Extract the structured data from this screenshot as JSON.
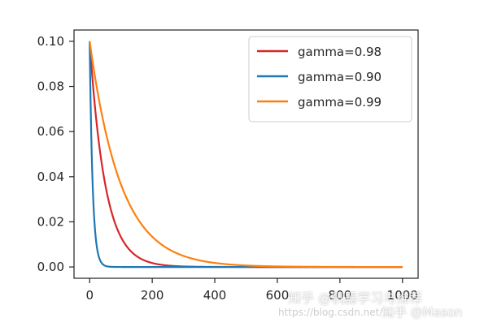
{
  "chart_data": {
    "type": "line",
    "title": "",
    "xlabel": "",
    "ylabel": "",
    "xlim": [
      -50,
      1050
    ],
    "ylim": [
      -0.005,
      0.105
    ],
    "x_ticks": [
      0,
      200,
      400,
      600,
      800,
      1000
    ],
    "x_tick_labels": [
      "0",
      "200",
      "400",
      "600",
      "800",
      "1000"
    ],
    "y_ticks": [
      0.0,
      0.02,
      0.04,
      0.06,
      0.08,
      0.1
    ],
    "y_tick_labels": [
      "0.00",
      "0.02",
      "0.04",
      "0.06",
      "0.08",
      "0.10"
    ],
    "grid": false,
    "legend_position": "top-right",
    "series": [
      {
        "name": "gamma=0.98",
        "color": "#d62728",
        "initial": 0.1,
        "gamma": 0.98,
        "x_range": [
          0,
          1000
        ]
      },
      {
        "name": "gamma=0.90",
        "color": "#1f77b4",
        "initial": 0.1,
        "gamma": 0.9,
        "x_range": [
          0,
          1000
        ]
      },
      {
        "name": "gamma=0.99",
        "color": "#ff7f0e",
        "initial": 0.1,
        "gamma": 0.99,
        "x_range": [
          0,
          1000
        ]
      }
    ]
  },
  "watermark": {
    "line1": "知乎 @机器学习与推荐",
    "line2": "https://blog.csdn.net/...",
    "line3": "知乎 @Mason"
  }
}
